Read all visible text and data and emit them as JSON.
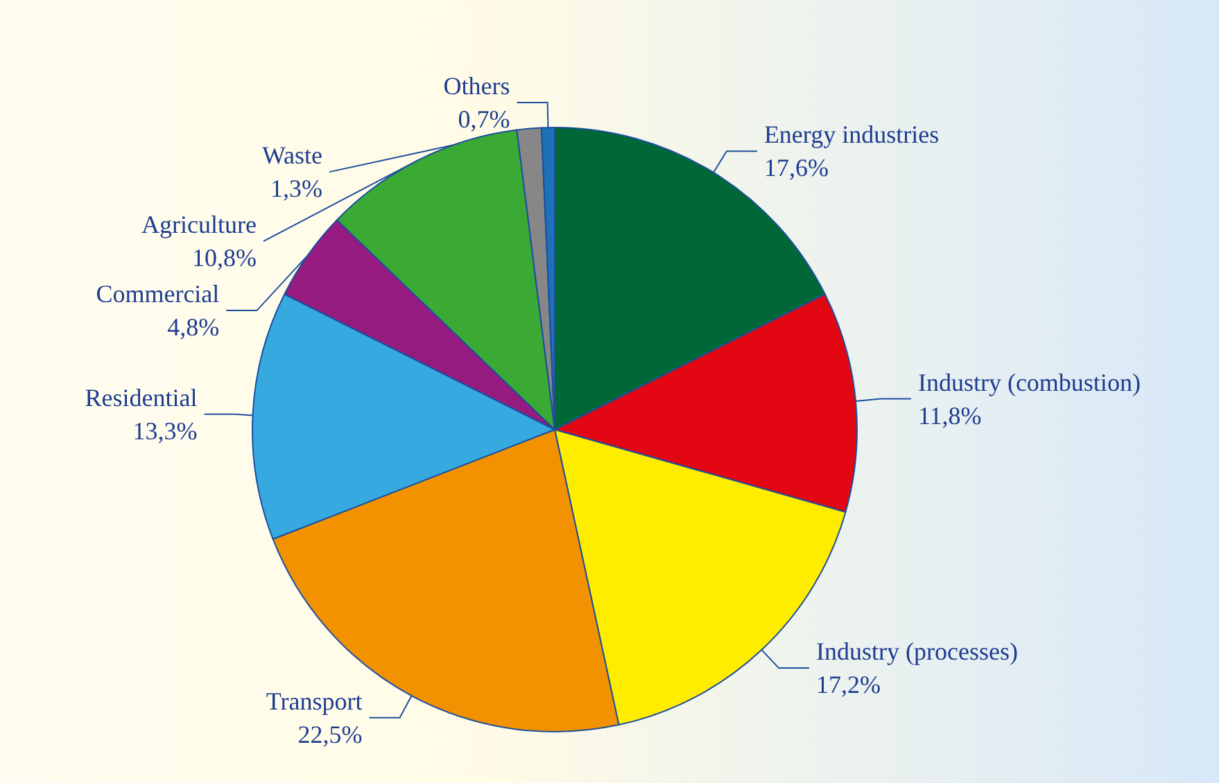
{
  "chart_data": {
    "type": "pie",
    "categories": [
      "Energy industries",
      "Industry (combustion)",
      "Industry (processes)",
      "Transport",
      "Residential",
      "Commercial",
      "Agriculture",
      "Waste",
      "Others"
    ],
    "values": [
      17.6,
      11.8,
      17.2,
      22.5,
      13.3,
      4.8,
      10.8,
      1.3,
      0.7
    ],
    "value_labels": [
      "17,6%",
      "11,8%",
      "17,2%",
      "22,5%",
      "13,3%",
      "4,8%",
      "10,8%",
      "1,3%",
      "0,7%"
    ],
    "colors": [
      "#006837",
      "#e30613",
      "#ffed00",
      "#f39200",
      "#36a9e1",
      "#951b81",
      "#3aaa35",
      "#878787",
      "#1d71b8"
    ]
  }
}
